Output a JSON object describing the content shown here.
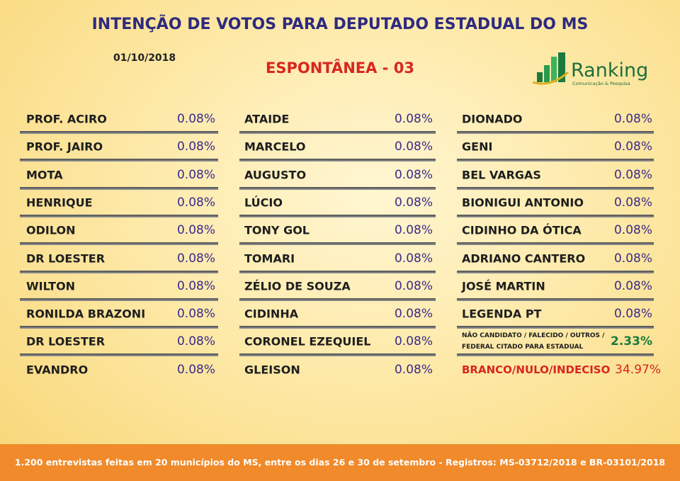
{
  "header": {
    "title": "INTENÇÃO DE VOTOS PARA DEPUTADO ESTADUAL DO MS",
    "date": "01/10/2018",
    "subtitle": "ESPONTÂNEA - 03",
    "logo": {
      "name": "Ranking",
      "tagline": "Comunicação & Pesquisa"
    }
  },
  "columns": [
    {
      "rows": [
        {
          "name": "PROF. ACIRO",
          "value": "0.08%"
        },
        {
          "name": "PROF. JAIRO",
          "value": "0.08%"
        },
        {
          "name": "MOTA",
          "value": "0.08%"
        },
        {
          "name": "HENRIQUE",
          "value": "0.08%"
        },
        {
          "name": "ODILON",
          "value": "0.08%"
        },
        {
          "name": "DR LOESTER",
          "value": "0.08%"
        },
        {
          "name": "WILTON",
          "value": "0.08%"
        },
        {
          "name": "RONILDA BRAZONI",
          "value": "0.08%"
        },
        {
          "name": "DR LOESTER",
          "value": "0.08%"
        },
        {
          "name": "EVANDRO",
          "value": "0.08%"
        }
      ]
    },
    {
      "rows": [
        {
          "name": "ATAIDE",
          "value": "0.08%"
        },
        {
          "name": "MARCELO",
          "value": "0.08%"
        },
        {
          "name": "AUGUSTO",
          "value": "0.08%"
        },
        {
          "name": "LÚCIO",
          "value": "0.08%"
        },
        {
          "name": "TONY GOL",
          "value": "0.08%"
        },
        {
          "name": "TOMARI",
          "value": "0.08%"
        },
        {
          "name": "ZÉLIO DE SOUZA",
          "value": "0.08%"
        },
        {
          "name": "CIDINHA",
          "value": "0.08%"
        },
        {
          "name": "CORONEL EZEQUIEL",
          "value": "0.08%"
        },
        {
          "name": "GLEISON",
          "value": "0.08%"
        }
      ]
    },
    {
      "rows": [
        {
          "name": "DIONADO",
          "value": "0.08%"
        },
        {
          "name": "GENI",
          "value": "0.08%"
        },
        {
          "name": "BEL VARGAS",
          "value": "0.08%"
        },
        {
          "name": "BIONIGUI ANTONIO",
          "value": "0.08%"
        },
        {
          "name": "CIDINHO DA ÓTICA",
          "value": "0.08%"
        },
        {
          "name": "ADRIANO CANTERO",
          "value": "0.08%"
        },
        {
          "name": "JOSÉ MARTIN",
          "value": "0.08%"
        },
        {
          "name": "LEGENDA PT",
          "value": "0.08%"
        },
        {
          "name_lines": [
            "NÃO CANDIDATO / FALECIDO / OUTROS /",
            "FEDERAL CITADO PARA ESTADUAL"
          ],
          "value": "2.33%"
        },
        {
          "name": "BRANCO/NULO/INDECISO",
          "value": "34.97%"
        }
      ]
    }
  ],
  "footer": "1.200 entrevistas feitas em 20 municípios do MS, entre os dias 26 e 30 de setembro - Registros: MS-03712/2018 e BR-03101/2018"
}
